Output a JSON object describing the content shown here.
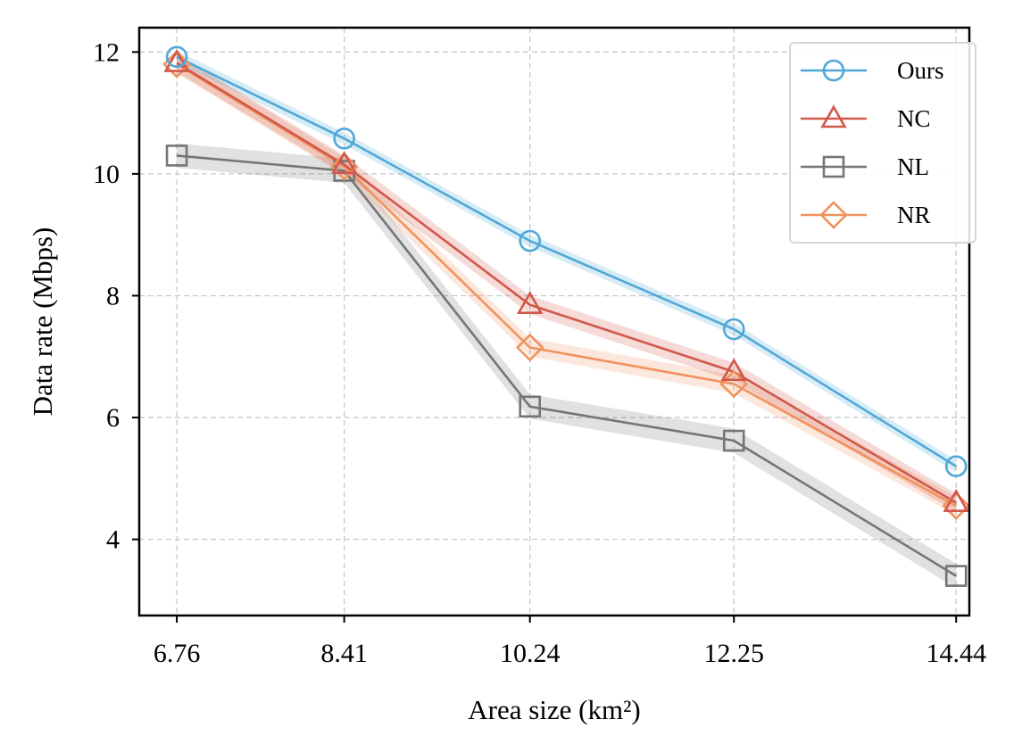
{
  "chart_data": {
    "type": "line",
    "title": "",
    "xlabel": "Area size (km²)",
    "ylabel": "Data rate (Mbps)",
    "categories": [
      "6.76",
      "8.41",
      "10.24",
      "12.25",
      "14.44"
    ],
    "x": [
      6.76,
      8.41,
      10.24,
      12.25,
      14.44
    ],
    "xlim": [
      6.39,
      14.57
    ],
    "ylim": [
      2.75,
      12.4
    ],
    "yticks": [
      4,
      6,
      8,
      10,
      12
    ],
    "ytick_labels": [
      "4",
      "6",
      "8",
      "10",
      "12"
    ],
    "grid": true,
    "legend_position": "top-right",
    "series": [
      {
        "name": "Ours",
        "color": "#4fa8d8",
        "marker": "circle",
        "values": [
          11.92,
          10.58,
          8.9,
          7.45,
          5.2
        ],
        "band": 0.1
      },
      {
        "name": "NC",
        "color": "#d1584a",
        "marker": "triangle",
        "values": [
          11.82,
          10.15,
          7.85,
          6.75,
          4.6
        ],
        "band": 0.15
      },
      {
        "name": "NL",
        "color": "#757575",
        "marker": "square",
        "values": [
          10.3,
          10.05,
          6.18,
          5.62,
          3.4
        ],
        "band": 0.2
      },
      {
        "name": "NR",
        "color": "#f0925e",
        "marker": "diamond",
        "values": [
          11.8,
          10.12,
          7.15,
          6.55,
          4.55
        ],
        "band": 0.15
      }
    ]
  }
}
